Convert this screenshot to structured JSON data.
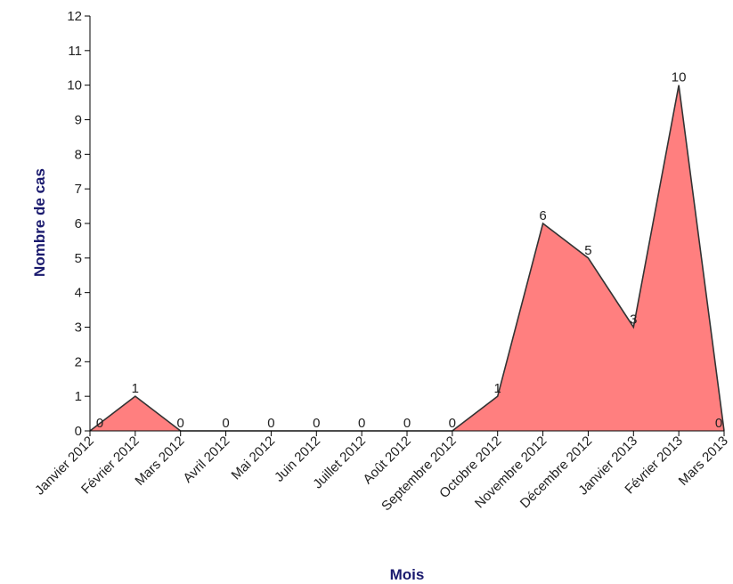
{
  "chart_data": {
    "type": "area",
    "xlabel": "Mois",
    "ylabel": "Nombre de cas",
    "categories": [
      "Janvier 2012",
      "Février 2012",
      "Mars 2012",
      "Avril 2012",
      "Mai 2012",
      "Juin 2012",
      "Juillet 2012",
      "Août 2012",
      "Septembre 2012",
      "Octobre 2012",
      "Novembre 2012",
      "Décembre 2012",
      "Janvier 2013",
      "Février 2013",
      "Mars 2013"
    ],
    "series": [
      {
        "values": [
          0,
          1,
          0,
          0,
          0,
          0,
          0,
          0,
          0,
          1,
          6,
          5,
          3,
          10,
          0
        ]
      }
    ],
    "ylim": [
      0,
      12
    ],
    "yticks": [
      "0",
      "1",
      "2",
      "3",
      "4",
      "5",
      "6",
      "7",
      "8",
      "9",
      "10",
      "11",
      "12"
    ],
    "data_labels": [
      "0",
      "1",
      "0",
      "0",
      "0",
      "0",
      "0",
      "0",
      "0",
      "1",
      "6",
      "5",
      "3",
      "10",
      "0"
    ],
    "grid": false,
    "colors": {
      "fill": "#ff7f7f",
      "line": "#333333",
      "axis": "#000000"
    }
  }
}
